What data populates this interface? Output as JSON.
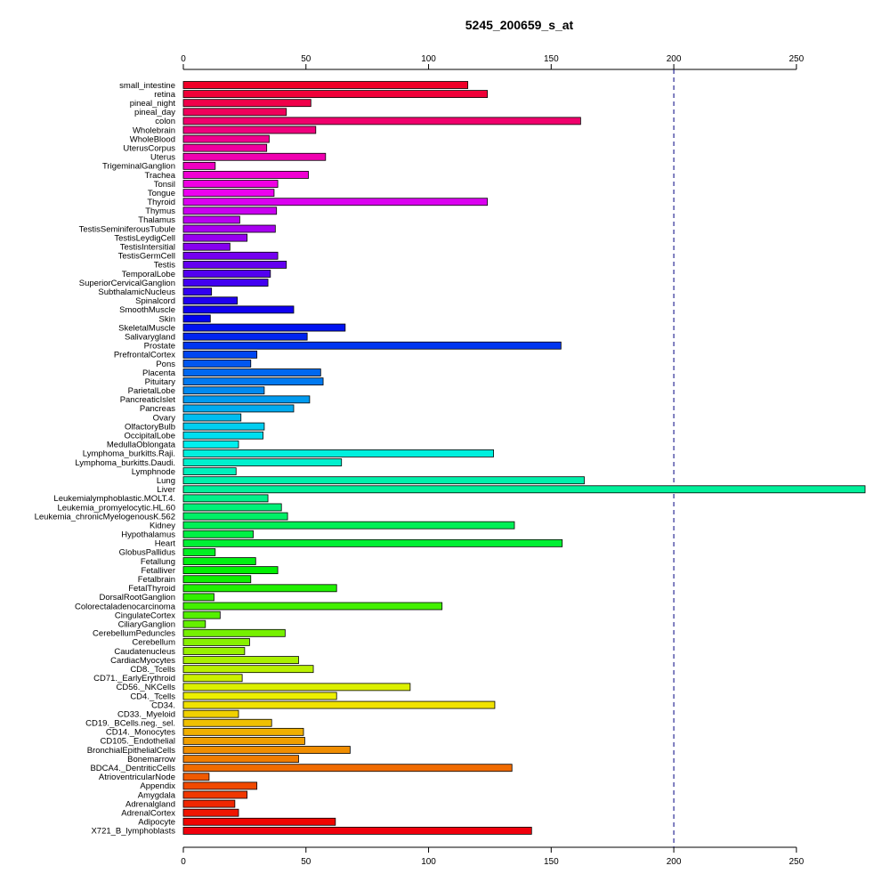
{
  "chart_data": {
    "type": "bar",
    "orientation": "horizontal",
    "title": "5245_200659_s_at",
    "xlabel": "",
    "ylabel": "",
    "xlim": [
      0,
      278
    ],
    "xticks": [
      0,
      50,
      100,
      150,
      200,
      250
    ],
    "reference_line": 200,
    "grid": false,
    "categories": [
      "small_intestine",
      "retina",
      "pineal_night",
      "pineal_day",
      "colon",
      "Wholebrain",
      "WholeBlood",
      "UterusCorpus",
      "Uterus",
      "TrigeminalGanglion",
      "Trachea",
      "Tonsil",
      "Tongue",
      "Thyroid",
      "Thymus",
      "Thalamus",
      "TestisSeminiferousTubule",
      "TestisLeydigCell",
      "TestisIntersitial",
      "TestisGermCell",
      "Testis",
      "TemporalLobe",
      "SuperiorCervicalGanglion",
      "SubthalamicNucleus",
      "Spinalcord",
      "SmoothMuscle",
      "Skin",
      "SkeletalMuscle",
      "Salivarygland",
      "Prostate",
      "PrefrontalCortex",
      "Pons",
      "Placenta",
      "Pituitary",
      "ParietalLobe",
      "PancreaticIslet",
      "Pancreas",
      "Ovary",
      "OlfactoryBulb",
      "OccipitalLobe",
      "MedullaOblongata",
      "Lymphoma_burkitts.Raji.",
      "Lymphoma_burkitts.Daudi.",
      "Lymphnode",
      "Lung",
      "Liver",
      "Leukemialymphoblastic.MOLT.4.",
      "Leukemia_promyelocytic.HL.60",
      "Leukemia_chronicMyelogenousK.562",
      "Kidney",
      "Hypothalamus",
      "Heart",
      "GlobusPallidus",
      "Fetallung",
      "Fetalliver",
      "Fetalbrain",
      "FetalThyroid",
      "DorsalRootGanglion",
      "Colorectaladenocarcinoma",
      "CingulateCortex",
      "CiliaryGanglion",
      "CerebellumPeduncles",
      "Cerebellum",
      "Caudatenucleus",
      "CardiacMyocytes",
      "CD8._Tcells",
      "CD71._EarlyErythroid",
      "CD56._NKCells",
      "CD4._Tcells",
      "CD34.",
      "CD33._Myeloid",
      "CD19._BCells.neg._sel.",
      "CD14._Monocytes",
      "CD105._Endothelial",
      "BronchialEpithelialCells",
      "Bonemarrow",
      "BDCA4._DentriticCells",
      "AtrioventricularNode",
      "Appendix",
      "Amygdala",
      "Adrenalgland",
      "AdrenalCortex",
      "Adipocyte",
      "X721_B_lymphoblasts"
    ],
    "values": [
      116,
      124,
      52,
      42,
      162,
      54,
      35,
      34,
      58,
      13,
      51,
      38.5,
      37,
      124,
      38,
      23,
      37.5,
      26,
      19,
      38.5,
      42,
      35.5,
      34.5,
      11.5,
      22,
      45,
      11,
      66,
      50.5,
      154,
      30,
      27.5,
      56,
      57,
      33,
      51.5,
      45,
      23.5,
      33,
      32.5,
      22.5,
      126.5,
      64.5,
      21.5,
      163.5,
      278,
      34.5,
      40,
      42.5,
      135,
      28.5,
      154.5,
      13,
      29.5,
      38.5,
      27.5,
      62.5,
      12.5,
      105.5,
      15,
      9,
      41.5,
      27,
      25,
      47,
      53,
      24,
      92.5,
      62.5,
      127,
      22.5,
      36,
      49,
      49.5,
      68,
      47,
      134,
      10.5,
      30,
      26,
      21,
      22.5,
      62,
      142
    ]
  }
}
